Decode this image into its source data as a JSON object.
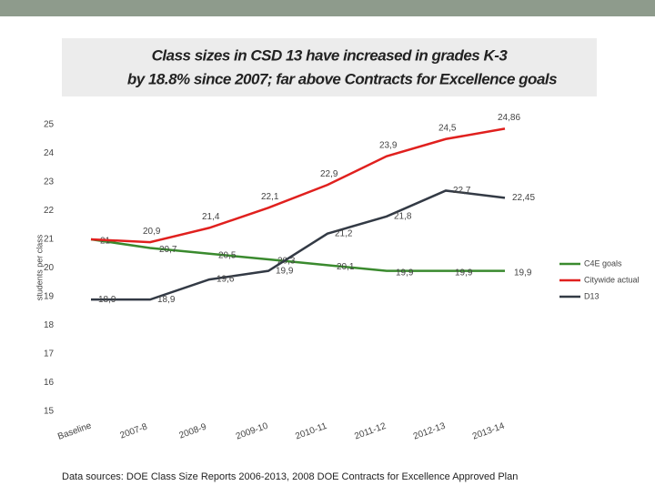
{
  "chart_data": {
    "type": "line",
    "title": [
      "Class sizes in CSD 13 have increased in grades K-3",
      "by 18.8% since 2007; far above Contracts for Excellence goals"
    ],
    "y_label": "students per class",
    "source": "Data sources: DOE Class Size Reports 2006-2013, 2008 DOE Contracts for Excellence Approved Plan",
    "categories": [
      "Baseline",
      "2007-8",
      "2008-9",
      "2009-10",
      "2010-11",
      "2011-12",
      "2012-13",
      "2013-14"
    ],
    "series": [
      {
        "name": "C4E goals",
        "color": "#3a8a2e",
        "values": [
          21,
          20.7,
          20.5,
          20.3,
          20.1,
          19.9,
          19.9,
          19.9
        ],
        "value_labels": [
          "21",
          "20,7",
          "20,5",
          "20,3",
          "20,1",
          "19,9",
          "19,9",
          "19,9"
        ]
      },
      {
        "name": "Citywide actual",
        "color": "#e0201e",
        "values": [
          21,
          20.9,
          21.4,
          22.1,
          22.9,
          23.9,
          24.5,
          24.86
        ],
        "value_labels": [
          null,
          "20,9",
          "21,4",
          "22,1",
          "22,9",
          "23,9",
          "24,5",
          "24,86"
        ]
      },
      {
        "name": "D13",
        "color": "#333a45",
        "values": [
          18.9,
          18.9,
          19.6,
          19.9,
          21.2,
          21.8,
          22.7,
          22.45
        ],
        "value_labels": [
          "18,9",
          "18,9",
          "19,6",
          "19,9",
          "21,2",
          "21,8",
          "22,7",
          "22,45"
        ]
      }
    ],
    "ylim": [
      15,
      25
    ],
    "yticks": [
      15,
      16,
      17,
      18,
      19,
      20,
      21,
      22,
      23,
      24,
      25
    ],
    "grid": false
  }
}
